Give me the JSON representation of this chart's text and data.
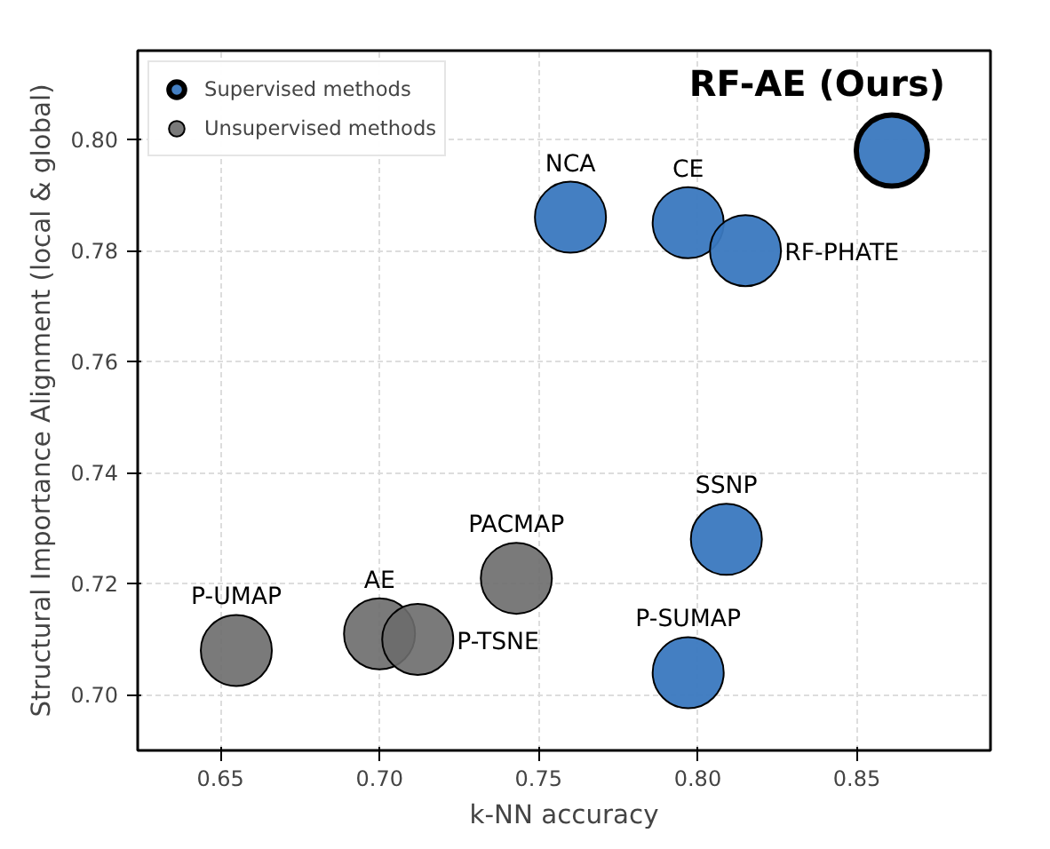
{
  "chart_data": {
    "type": "scatter",
    "xlabel": "k-NN accuracy",
    "ylabel": "Structural Importance Alignment (local & global)",
    "xlim": [
      0.624,
      0.892
    ],
    "ylim": [
      0.69,
      0.816
    ],
    "xticks": [
      {
        "value": 0.65,
        "label": "0.65"
      },
      {
        "value": 0.7,
        "label": "0.70"
      },
      {
        "value": 0.75,
        "label": "0.75"
      },
      {
        "value": 0.8,
        "label": "0.80"
      },
      {
        "value": 0.85,
        "label": "0.85"
      }
    ],
    "yticks": [
      {
        "value": 0.7,
        "label": "0.70"
      },
      {
        "value": 0.72,
        "label": "0.72"
      },
      {
        "value": 0.74,
        "label": "0.74"
      },
      {
        "value": 0.76,
        "label": "0.76"
      },
      {
        "value": 0.78,
        "label": "0.78"
      },
      {
        "value": 0.8,
        "label": "0.80"
      }
    ],
    "grid": true,
    "legend": "top left",
    "marker": "circle",
    "series": [
      {
        "name": "Supervised methods",
        "color": "#3a78bf",
        "x": [
          0.861,
          0.76,
          0.797,
          0.815,
          0.809,
          0.797
        ],
        "values": [
          0.798,
          0.786,
          0.785,
          0.78,
          0.728,
          0.704
        ]
      },
      {
        "name": "Unsupervised methods",
        "color": "#6b6b6b",
        "x": [
          0.743,
          0.7,
          0.712,
          0.655
        ],
        "values": [
          0.721,
          0.711,
          0.71,
          0.708
        ]
      }
    ],
    "annotations": [
      {
        "text": "RF-AE (Ours)",
        "x": 0.861,
        "y": 0.798
      },
      {
        "text": "NCA",
        "x": 0.76,
        "y": 0.786
      },
      {
        "text": "CE",
        "x": 0.797,
        "y": 0.785
      },
      {
        "text": "RF-PHATE",
        "x": 0.815,
        "y": 0.78
      },
      {
        "text": "SSNP",
        "x": 0.809,
        "y": 0.728
      },
      {
        "text": "P-SUMAP",
        "x": 0.797,
        "y": 0.704
      },
      {
        "text": "PACMAP",
        "x": 0.743,
        "y": 0.721
      },
      {
        "text": "AE",
        "x": 0.7,
        "y": 0.711
      },
      {
        "text": "P-TSNE",
        "x": 0.712,
        "y": 0.71
      },
      {
        "text": "P-UMAP",
        "x": 0.655,
        "y": 0.708
      }
    ]
  }
}
